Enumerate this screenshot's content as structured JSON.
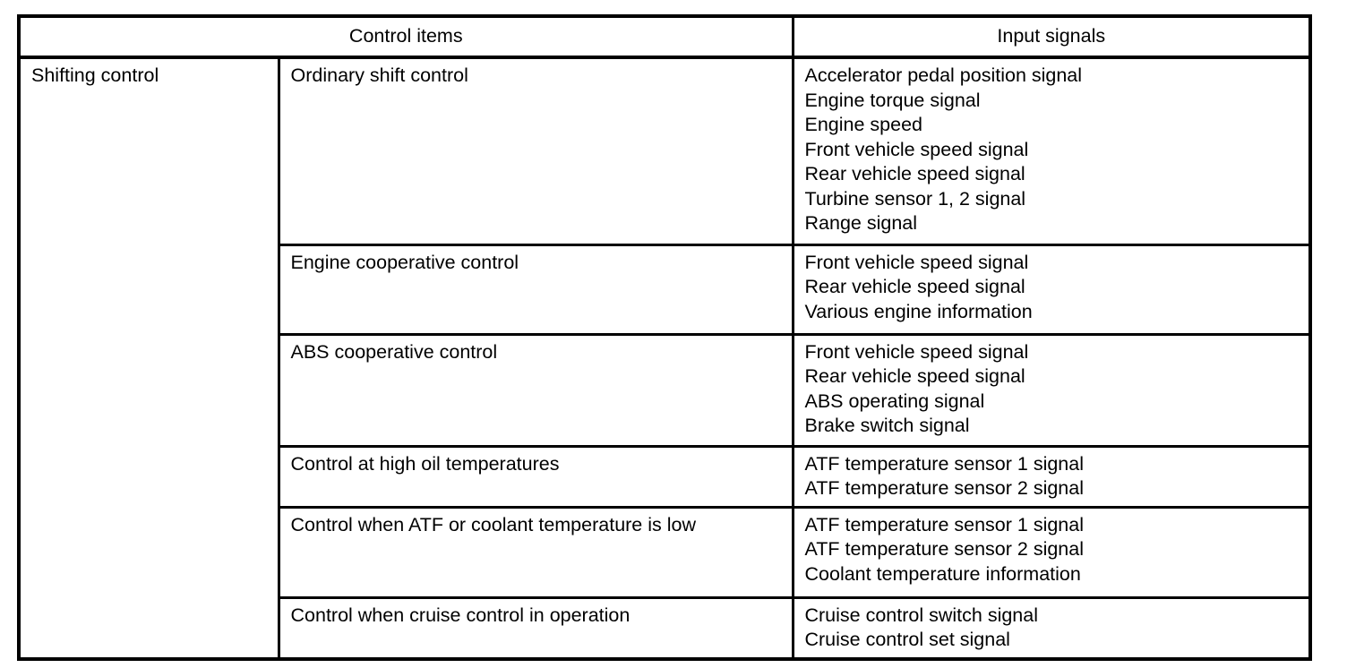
{
  "table": {
    "header": {
      "control_items": "Control items",
      "input_signals": "Input signals"
    },
    "group_label": "Shifting control",
    "rows": [
      {
        "control": "Ordinary shift control",
        "signals": [
          "Accelerator pedal position signal",
          "Engine torque signal",
          "Engine speed",
          "Front vehicle speed signal",
          "Rear vehicle speed signal",
          "Turbine sensor 1, 2 signal",
          "Range signal"
        ]
      },
      {
        "control": "Engine cooperative control",
        "signals": [
          "Front vehicle speed signal",
          "Rear vehicle speed signal",
          "Various engine information"
        ]
      },
      {
        "control": "ABS cooperative control",
        "signals": [
          "Front vehicle speed signal",
          "Rear vehicle speed signal",
          "ABS operating signal",
          "Brake switch signal"
        ]
      },
      {
        "control": "Control at high oil temperatures",
        "signals": [
          "ATF temperature sensor 1 signal",
          "ATF temperature sensor 2 signal"
        ]
      },
      {
        "control": "Control when ATF or coolant temperature is low",
        "signals": [
          "ATF temperature sensor 1 signal",
          "ATF temperature sensor 2 signal",
          "Coolant temperature information"
        ]
      },
      {
        "control": "Control when cruise control in operation",
        "signals": [
          "Cruise control switch signal",
          "Cruise control set signal"
        ]
      }
    ]
  },
  "colors": {
    "border": "#000000",
    "text": "#000000",
    "background": "#ffffff"
  }
}
